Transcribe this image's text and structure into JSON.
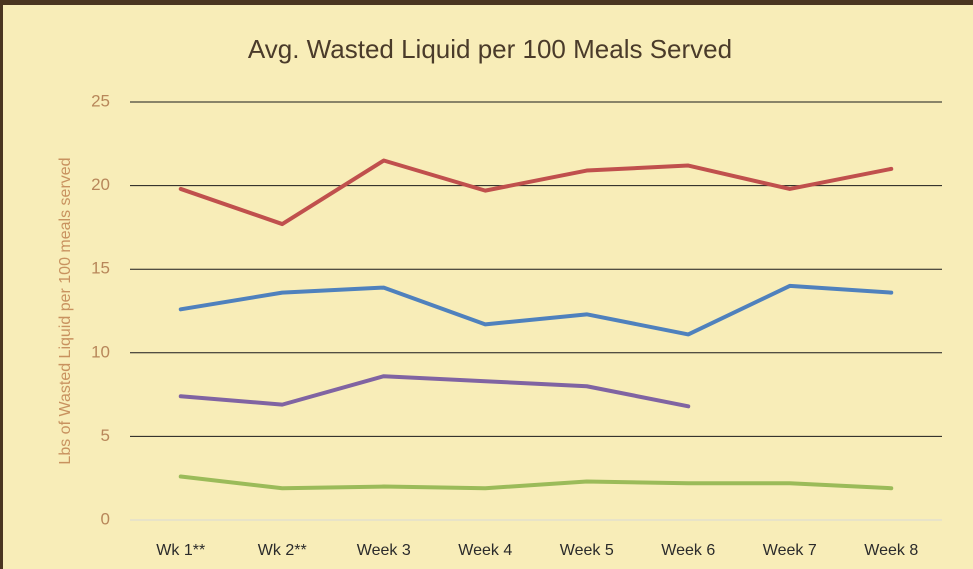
{
  "chart_data": {
    "type": "line",
    "title": "Avg. Wasted Liquid per 100 Meals Served",
    "y_label": "Lbs of Wasted Liquid per 100 meals served",
    "categories": [
      "Wk 1**",
      "Wk 2**",
      "Week 3",
      "Week 4",
      "Week 5",
      "Week 6",
      "Week 7",
      "Week 8"
    ],
    "series": [
      {
        "color": "#c0504d",
        "values": [
          19.8,
          17.7,
          21.5,
          19.7,
          20.9,
          21.2,
          19.8,
          21.0
        ]
      },
      {
        "color": "#4f81bd",
        "values": [
          12.6,
          13.6,
          13.9,
          11.7,
          12.3,
          11.1,
          14.0,
          13.6
        ]
      },
      {
        "color": "#8064a2",
        "values": [
          7.4,
          6.9,
          8.6,
          8.3,
          8.0,
          6.8,
          null,
          null
        ]
      },
      {
        "color": "#9bbb59",
        "values": [
          2.6,
          1.9,
          2.0,
          1.9,
          2.3,
          2.2,
          2.2,
          1.9
        ]
      }
    ],
    "ylim": [
      0,
      25
    ],
    "yticks": [
      0,
      5,
      10,
      15,
      20,
      25
    ],
    "grid": true
  }
}
